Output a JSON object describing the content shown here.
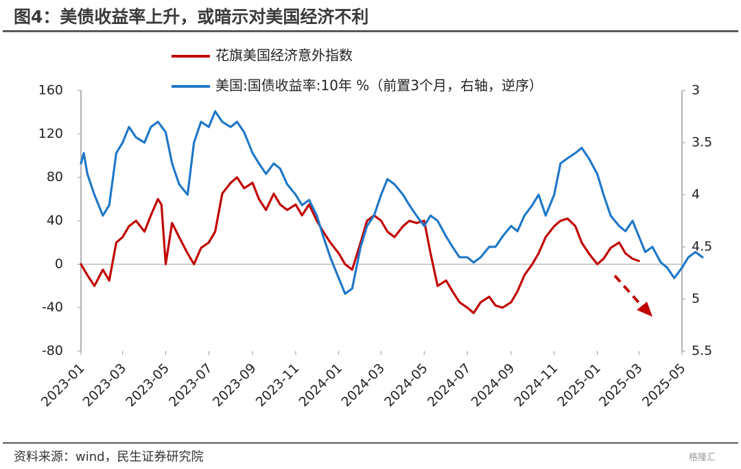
{
  "title": "图4：美债收益率上升，或暗示对美国经济不利",
  "source": "资料来源：wind，民生证券研究院",
  "watermark": "格隆汇",
  "chart_data": {
    "type": "line",
    "title": "图4：美债收益率上升，或暗示对美国经济不利",
    "x_ticks": [
      "2023-01",
      "2023-03",
      "2023-05",
      "2023-07",
      "2023-09",
      "2023-11",
      "2024-01",
      "2024-03",
      "2024-05",
      "2024-07",
      "2024-09",
      "2024-11",
      "2025-01",
      "2025-03",
      "2025-05"
    ],
    "left_axis": {
      "ylim": [
        -80,
        160
      ],
      "ticks": [
        "160",
        "120",
        "80",
        "40",
        "0",
        "-40",
        "-80"
      ]
    },
    "right_axis": {
      "ylim": [
        3,
        5.5
      ],
      "inverted": true,
      "ticks": [
        "3",
        "3.5",
        "4",
        "4.5",
        "5",
        "5.5"
      ]
    },
    "grid": false,
    "legend_position": "top",
    "series": [
      {
        "name": "花旗美国经济意外指数",
        "color": "#C00000",
        "axis": "left",
        "x": [
          "2023-01-01",
          "2023-01-10",
          "2023-01-20",
          "2023-02-01",
          "2023-02-10",
          "2023-02-20",
          "2023-03-01",
          "2023-03-10",
          "2023-03-20",
          "2023-04-01",
          "2023-04-10",
          "2023-04-20",
          "2023-04-25",
          "2023-05-01",
          "2023-05-10",
          "2023-05-20",
          "2023-06-01",
          "2023-06-10",
          "2023-06-20",
          "2023-07-01",
          "2023-07-10",
          "2023-07-20",
          "2023-08-01",
          "2023-08-10",
          "2023-08-20",
          "2023-09-01",
          "2023-09-10",
          "2023-09-20",
          "2023-10-01",
          "2023-10-10",
          "2023-10-20",
          "2023-11-01",
          "2023-11-10",
          "2023-11-20",
          "2023-12-01",
          "2023-12-10",
          "2023-12-20",
          "2024-01-01",
          "2024-01-10",
          "2024-01-20",
          "2024-02-01",
          "2024-02-10",
          "2024-02-20",
          "2024-03-01",
          "2024-03-10",
          "2024-03-20",
          "2024-04-01",
          "2024-04-10",
          "2024-04-20",
          "2024-05-01",
          "2024-05-10",
          "2024-05-20",
          "2024-06-01",
          "2024-06-10",
          "2024-06-20",
          "2024-07-01",
          "2024-07-10",
          "2024-07-20",
          "2024-08-01",
          "2024-08-10",
          "2024-08-20",
          "2024-09-01",
          "2024-09-10",
          "2024-09-20",
          "2024-10-01",
          "2024-10-10",
          "2024-10-20",
          "2024-11-01",
          "2024-11-10",
          "2024-11-20",
          "2024-12-01",
          "2024-12-10",
          "2024-12-20",
          "2025-01-01",
          "2025-01-10",
          "2025-01-20",
          "2025-02-01",
          "2025-02-10",
          "2025-02-20",
          "2025-03-01"
        ],
        "values": [
          0,
          -10,
          -20,
          -5,
          -15,
          20,
          25,
          35,
          40,
          30,
          45,
          60,
          55,
          0,
          38,
          25,
          10,
          0,
          15,
          20,
          30,
          65,
          75,
          80,
          70,
          75,
          60,
          50,
          65,
          55,
          50,
          55,
          45,
          55,
          40,
          30,
          20,
          10,
          0,
          -5,
          20,
          40,
          45,
          40,
          30,
          25,
          35,
          40,
          38,
          40,
          10,
          -20,
          -15,
          -25,
          -35,
          -40,
          -45,
          -35,
          -30,
          -38,
          -40,
          -35,
          -25,
          -10,
          0,
          10,
          25,
          35,
          40,
          42,
          35,
          20,
          10,
          0,
          5,
          15,
          20,
          10,
          5,
          3
        ]
      },
      {
        "name": "美国:国债收益率:10年 %（前置3个月，右轴，逆序）",
        "color": "#1F77C8",
        "axis": "right",
        "x": [
          "2023-01-01",
          "2023-01-05",
          "2023-01-10",
          "2023-01-20",
          "2023-02-01",
          "2023-02-10",
          "2023-02-20",
          "2023-03-01",
          "2023-03-10",
          "2023-03-20",
          "2023-04-01",
          "2023-04-10",
          "2023-04-20",
          "2023-05-01",
          "2023-05-10",
          "2023-05-20",
          "2023-06-01",
          "2023-06-10",
          "2023-06-20",
          "2023-07-01",
          "2023-07-10",
          "2023-07-20",
          "2023-08-01",
          "2023-08-10",
          "2023-08-20",
          "2023-09-01",
          "2023-09-10",
          "2023-09-20",
          "2023-10-01",
          "2023-10-10",
          "2023-10-20",
          "2023-11-01",
          "2023-11-10",
          "2023-11-20",
          "2023-12-01",
          "2023-12-10",
          "2023-12-20",
          "2024-01-01",
          "2024-01-10",
          "2024-01-20",
          "2024-02-01",
          "2024-02-10",
          "2024-02-20",
          "2024-03-01",
          "2024-03-10",
          "2024-03-20",
          "2024-04-01",
          "2024-04-10",
          "2024-04-20",
          "2024-05-01",
          "2024-05-10",
          "2024-05-20",
          "2024-06-01",
          "2024-06-10",
          "2024-06-20",
          "2024-07-01",
          "2024-07-10",
          "2024-07-20",
          "2024-08-01",
          "2024-08-10",
          "2024-08-20",
          "2024-09-01",
          "2024-09-10",
          "2024-09-20",
          "2024-10-01",
          "2024-10-10",
          "2024-10-20",
          "2024-11-01",
          "2024-11-10",
          "2024-11-20",
          "2024-12-01",
          "2024-12-10",
          "2024-12-20",
          "2025-01-01",
          "2025-01-10",
          "2025-01-20",
          "2025-02-01",
          "2025-02-10",
          "2025-02-20",
          "2025-03-01",
          "2025-03-10",
          "2025-03-20",
          "2025-04-01",
          "2025-04-10",
          "2025-04-20",
          "2025-05-01",
          "2025-05-10",
          "2025-05-20",
          "2025-05-30"
        ],
        "values": [
          3.7,
          3.6,
          3.8,
          4.0,
          4.2,
          4.1,
          3.6,
          3.5,
          3.35,
          3.45,
          3.5,
          3.35,
          3.3,
          3.4,
          3.7,
          3.9,
          4.0,
          3.5,
          3.3,
          3.35,
          3.2,
          3.3,
          3.35,
          3.3,
          3.4,
          3.6,
          3.7,
          3.8,
          3.7,
          3.75,
          3.9,
          4.0,
          4.1,
          4.05,
          4.2,
          4.4,
          4.6,
          4.8,
          4.95,
          4.9,
          4.5,
          4.3,
          4.2,
          4.0,
          3.85,
          3.9,
          4.0,
          4.1,
          4.2,
          4.3,
          4.2,
          4.25,
          4.4,
          4.5,
          4.6,
          4.6,
          4.65,
          4.6,
          4.5,
          4.5,
          4.4,
          4.3,
          4.35,
          4.2,
          4.1,
          4.0,
          4.2,
          4.0,
          3.7,
          3.65,
          3.6,
          3.55,
          3.65,
          3.8,
          4.0,
          4.2,
          4.3,
          4.35,
          4.25,
          4.4,
          4.55,
          4.5,
          4.65,
          4.7,
          4.8,
          4.7,
          4.6,
          4.55,
          4.6
        ]
      }
    ],
    "annotation": {
      "type": "dashed-arrow",
      "color": "#C00000",
      "meaning": "projected decline"
    }
  }
}
